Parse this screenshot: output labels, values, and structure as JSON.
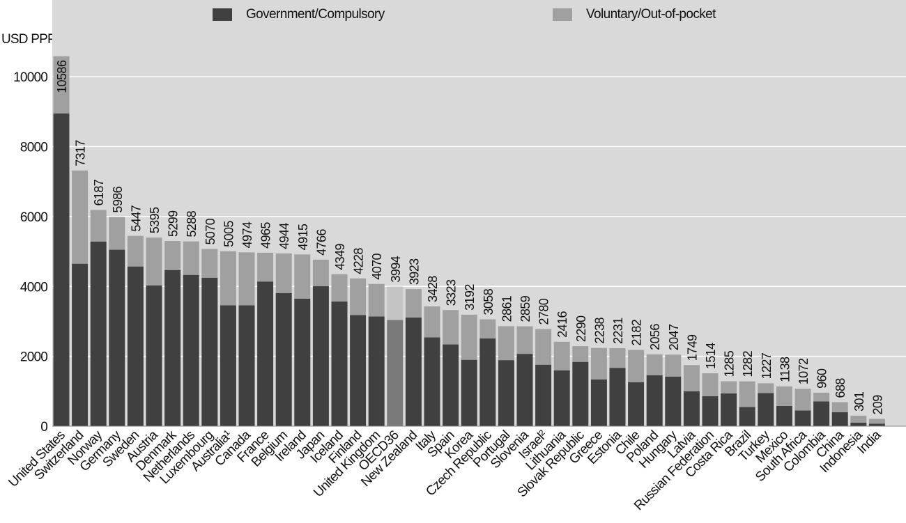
{
  "legend": {
    "items": [
      {
        "label": "Government/Compulsory",
        "color": "#404040"
      },
      {
        "label": "Voluntary/Out-of-pocket",
        "color": "#a0a0a0"
      }
    ]
  },
  "chart_data": {
    "type": "bar",
    "stacked": true,
    "ylabel": "USD PPP",
    "ylim": [
      0,
      10800
    ],
    "yticks": [
      0,
      2000,
      4000,
      6000,
      8000,
      10000
    ],
    "grid": true,
    "legend_position": "top",
    "highlight_category": "OECD36",
    "colors": {
      "government": "#404040",
      "voluntary": "#a0a0a0",
      "highlight_government": "#7a7a7a",
      "highlight_voluntary": "#c4c4c4",
      "background": "#d9d9d9",
      "grid": "#ffffff"
    },
    "categories": [
      "United States",
      "Switzerland",
      "Norway",
      "Germany",
      "Sweden",
      "Austria",
      "Denmark",
      "Netherlands",
      "Luxembourg",
      "Australia¹",
      "Canada",
      "France",
      "Belgium",
      "Ireland",
      "Japan",
      "Iceland",
      "Finland",
      "United Kingdom",
      "OECD36",
      "New Zealand",
      "Italy",
      "Spain",
      "Korea",
      "Czech Republic",
      "Portugal",
      "Slovenia",
      "Israel²",
      "Lithuania",
      "Slovak Republic",
      "Greece",
      "Estonia",
      "Chile",
      "Poland",
      "Hungary",
      "Latvia",
      "Russian Federation",
      "Costa Rica",
      "Brazil",
      "Turkey",
      "Mexico",
      "South Africa",
      "Colombia",
      "China",
      "Indonesia",
      "India"
    ],
    "totals": [
      10586,
      7317,
      6187,
      5986,
      5447,
      5395,
      5299,
      5288,
      5070,
      5005,
      4974,
      4965,
      4944,
      4915,
      4766,
      4349,
      4228,
      4070,
      3994,
      3923,
      3428,
      3323,
      3192,
      3058,
      2861,
      2859,
      2780,
      2416,
      2290,
      2238,
      2231,
      2182,
      2056,
      2047,
      1749,
      1514,
      1285,
      1282,
      1227,
      1138,
      1072,
      960,
      688,
      301,
      209
    ],
    "series": [
      {
        "name": "Government/Compulsory",
        "values": [
          8950,
          4650,
          5280,
          5050,
          4570,
          4030,
          4470,
          4330,
          4250,
          3460,
          3460,
          4140,
          3810,
          3650,
          4010,
          3570,
          3180,
          3140,
          3040,
          3110,
          2540,
          2340,
          1900,
          2510,
          1890,
          2070,
          1760,
          1600,
          1840,
          1340,
          1670,
          1260,
          1460,
          1420,
          1000,
          860,
          940,
          550,
          950,
          580,
          450,
          710,
          400,
          100,
          70
        ]
      },
      {
        "name": "Voluntary/Out-of-pocket",
        "values": [
          1636,
          2667,
          907,
          936,
          877,
          1365,
          829,
          958,
          820,
          1545,
          1514,
          825,
          1134,
          1265,
          756,
          779,
          1048,
          930,
          954,
          813,
          888,
          983,
          1292,
          548,
          971,
          789,
          1020,
          816,
          450,
          898,
          561,
          922,
          596,
          627,
          749,
          654,
          345,
          732,
          277,
          558,
          622,
          250,
          288,
          201,
          139
        ]
      }
    ]
  }
}
